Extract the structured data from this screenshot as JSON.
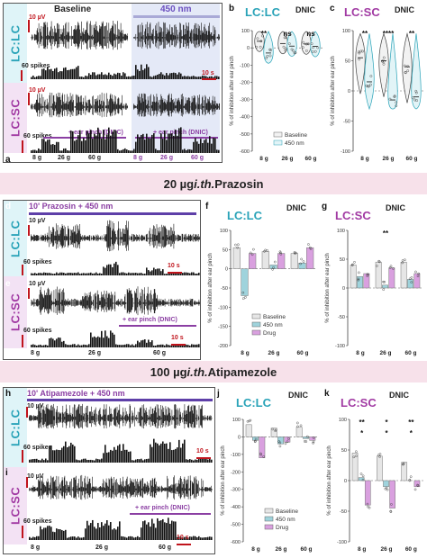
{
  "section1": {
    "title_baseline": "Baseline",
    "title_light": "450 nm",
    "scale_uv": "10 µV",
    "scale_spikes": "60 spikes",
    "scale_time": "10 s",
    "pinch_label": "+ ear pinch (DNIC)",
    "weights": [
      "8 g",
      "26 g",
      "60 g",
      "8 g",
      "26 g",
      "60 g"
    ],
    "panel_labels": {
      "a": "a",
      "b": "b",
      "c": "c"
    },
    "side_lc": "LC:LC",
    "side_sc": "LC:SC"
  },
  "section2": {
    "banner": "20 µg i.th. Prazosin",
    "banner_dose": "20 µg ",
    "banner_route": "i.th.",
    "banner_drug": " Prazosin",
    "trace_title": "10' Prazosin + 450 nm",
    "scale_uv": "10 µV",
    "scale_spikes": "60 spikes",
    "scale_time": "10 s",
    "pinch_label": "+ ear pinch (DNIC)",
    "weights": [
      "8 g",
      "26 g",
      "60 g"
    ],
    "panel_labels": {
      "d": "d",
      "e": "e",
      "f": "f",
      "g": "g"
    },
    "side_lc": "LC:LC",
    "side_sc": "LC:SC"
  },
  "section3": {
    "banner_dose": "100 µg ",
    "banner_route": "i.th.",
    "banner_drug": " Atipamezole",
    "trace_title": "10' Atipamezole + 450 nm",
    "scale_uv": "10 µV",
    "scale_spikes": "60 spikes",
    "scale_time": "10 s",
    "pinch_label": "+ ear pinch (DNIC)",
    "weights": [
      "8 g",
      "26 g",
      "60 g"
    ],
    "panel_labels": {
      "h": "h",
      "i": "i",
      "j": "j",
      "k": "k"
    },
    "side_lc": "LC:LC",
    "side_sc": "LC:SC"
  },
  "colors": {
    "lc": "#2aa3b8",
    "sc": "#a13aa3",
    "baseline_fill": "#e6e6e6",
    "light_fill": "#9fd3dc",
    "drug_fill": "#d9a0df",
    "trace": "#111111",
    "scale_red": "#c0141c",
    "banner_bg": "#f7e1ea",
    "light_shade": "#e4e9f7"
  },
  "chart_data": [
    {
      "id": "b",
      "type": "violin",
      "title": "LC:LC",
      "dnic_label": "DNIC",
      "ylabel": "% of inhibition after ear pinch",
      "ylim": [
        -600,
        100
      ],
      "yticks": [
        100,
        0,
        -100,
        -200,
        -300,
        -400,
        -500,
        -600
      ],
      "categories": [
        "8 g",
        "26 g",
        "60 g"
      ],
      "series": [
        {
          "name": "Baseline",
          "values": [
            38,
            25,
            22
          ]
        },
        {
          "name": "450 nm",
          "values": [
            -30,
            10,
            8
          ]
        }
      ],
      "significance": [
        "**",
        "ns",
        "ns"
      ],
      "legend": [
        "Baseline",
        "450 nm"
      ]
    },
    {
      "id": "c",
      "type": "violin",
      "title": "LC:SC",
      "dnic_label": "DNIC",
      "ylabel": "% of inhibition after ear pinch",
      "ylim": [
        -100,
        100
      ],
      "yticks": [
        100,
        50,
        0,
        -50,
        -100
      ],
      "categories": [
        "8 g",
        "26 g",
        "60 g"
      ],
      "series": [
        {
          "name": "Baseline",
          "values": [
            55,
            50,
            40
          ]
        },
        {
          "name": "450 nm",
          "values": [
            15,
            -15,
            -10
          ]
        }
      ],
      "significance": [
        "**",
        "****",
        "**"
      ]
    },
    {
      "id": "f",
      "type": "bar",
      "title": "LC:LC",
      "dnic_label": "DNIC",
      "ylabel": "% of inhibition after ear pinch",
      "ylim": [
        -200,
        100
      ],
      "yticks": [
        100,
        50,
        0,
        -50,
        -100,
        -150,
        -200
      ],
      "categories": [
        "8 g",
        "26 g",
        "60 g"
      ],
      "series": [
        {
          "name": "Baseline",
          "values": [
            55,
            45,
            40
          ]
        },
        {
          "name": "450 nm",
          "values": [
            -70,
            10,
            15
          ]
        },
        {
          "name": "Drug",
          "values": [
            40,
            40,
            55
          ]
        }
      ],
      "legend": [
        "Baseline",
        "450 nm",
        "Drug"
      ]
    },
    {
      "id": "g",
      "type": "bar",
      "title": "LC:SC",
      "dnic_label": "DNIC",
      "ylabel": "% of inhibition after ear pinch",
      "ylim": [
        -100,
        100
      ],
      "yticks": [
        100,
        50,
        0,
        -50,
        -100
      ],
      "categories": [
        "8 g",
        "26 g",
        "60 g"
      ],
      "series": [
        {
          "name": "Baseline",
          "values": [
            40,
            45,
            45
          ]
        },
        {
          "name": "450 nm",
          "values": [
            20,
            5,
            15
          ]
        },
        {
          "name": "Drug",
          "values": [
            25,
            35,
            25
          ]
        }
      ],
      "significance": [
        "",
        "**",
        ""
      ]
    },
    {
      "id": "j",
      "type": "bar",
      "title": "LC:LC",
      "dnic_label": "DNIC",
      "ylabel": "% of inhibition after ear pinch",
      "ylim": [
        -600,
        100
      ],
      "yticks": [
        100,
        0,
        -100,
        -200,
        -300,
        -400,
        -500,
        -600
      ],
      "categories": [
        "8 g",
        "26 g",
        "60 g"
      ],
      "series": [
        {
          "name": "Baseline",
          "values": [
            70,
            50,
            55
          ]
        },
        {
          "name": "450 nm",
          "values": [
            -20,
            -40,
            -10
          ]
        },
        {
          "name": "Drug",
          "values": [
            -120,
            -30,
            -20
          ]
        }
      ],
      "legend": [
        "Baseline",
        "450 nm",
        "Drug"
      ]
    },
    {
      "id": "k",
      "type": "bar",
      "title": "LC:SC",
      "dnic_label": "DNIC",
      "ylabel": "% of inhibition after ear pinch",
      "ylim": [
        -100,
        100
      ],
      "yticks": [
        100,
        50,
        0,
        -50,
        -100
      ],
      "categories": [
        "8 g",
        "26 g",
        "60 g"
      ],
      "series": [
        {
          "name": "Baseline",
          "values": [
            45,
            40,
            30
          ]
        },
        {
          "name": "450 nm",
          "values": [
            5,
            -10,
            0
          ]
        },
        {
          "name": "Drug",
          "values": [
            -40,
            -45,
            -10
          ]
        }
      ],
      "significance": [
        "**",
        "*",
        "**"
      ],
      "significance2": [
        "*",
        "*",
        "*"
      ]
    }
  ]
}
